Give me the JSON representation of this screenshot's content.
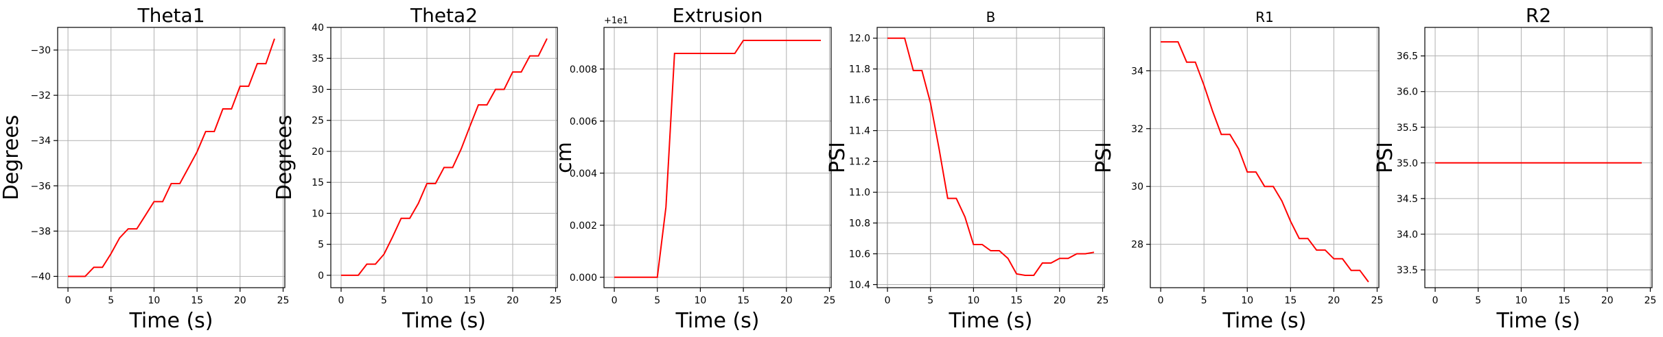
{
  "chart_data": [
    {
      "type": "line",
      "title": "Theta1",
      "xlabel": "Time (s)",
      "ylabel": "Degrees",
      "xlim": [
        -1.2,
        25.2
      ],
      "ylim": [
        -40.5,
        -29.0
      ],
      "xticks": [
        0,
        5,
        10,
        15,
        20,
        25
      ],
      "yticks": [
        -40,
        -38,
        -36,
        -34,
        -32,
        -30
      ],
      "ytick_labels": [
        "−40",
        "−38",
        "−36",
        "−34",
        "−32",
        "−30"
      ],
      "offset_text": "",
      "grid": true,
      "color": "#ff0000",
      "x": [
        0,
        1,
        2,
        3,
        4,
        5,
        6,
        7,
        8,
        9,
        10,
        11,
        12,
        13,
        14,
        15,
        16,
        17,
        18,
        19,
        20,
        21,
        22,
        23,
        24
      ],
      "y": [
        -40,
        -40,
        -40,
        -39.6,
        -39.6,
        -39.0,
        -38.3,
        -37.9,
        -37.9,
        -37.3,
        -36.7,
        -36.7,
        -35.9,
        -35.9,
        -35.2,
        -34.5,
        -33.6,
        -33.6,
        -32.6,
        -32.6,
        -31.6,
        -31.6,
        -30.6,
        -30.6,
        -29.5
      ],
      "series": [
        {
          "values": [
            -40,
            -40,
            -40,
            -39.6,
            -39.6,
            -39.0,
            -38.3,
            -37.9,
            -37.9,
            -37.3,
            -36.7,
            -36.7,
            -35.9,
            -35.9,
            -35.2,
            -34.5,
            -33.6,
            -33.6,
            -32.6,
            -32.6,
            -31.6,
            -31.6,
            -30.6,
            -30.6,
            -29.5
          ]
        }
      ]
    },
    {
      "type": "line",
      "title": "Theta2",
      "xlabel": "Time (s)",
      "ylabel": "Degrees",
      "xlim": [
        -1.2,
        25.2
      ],
      "ylim": [
        -2.0,
        40.0
      ],
      "xticks": [
        0,
        5,
        10,
        15,
        20,
        25
      ],
      "yticks": [
        0,
        5,
        10,
        15,
        20,
        25,
        30,
        35,
        40
      ],
      "ytick_labels": [
        "0",
        "5",
        "10",
        "15",
        "20",
        "25",
        "30",
        "35",
        "40"
      ],
      "offset_text": "",
      "grid": true,
      "color": "#ff0000",
      "x": [
        0,
        1,
        2,
        3,
        4,
        5,
        6,
        7,
        8,
        9,
        10,
        11,
        12,
        13,
        14,
        15,
        16,
        17,
        18,
        19,
        20,
        21,
        22,
        23,
        24
      ],
      "y": [
        0,
        0,
        0,
        1.8,
        1.8,
        3.4,
        6.2,
        9.2,
        9.2,
        11.6,
        14.8,
        14.8,
        17.4,
        17.4,
        20.4,
        24.0,
        27.5,
        27.5,
        30.0,
        30.0,
        32.8,
        32.8,
        35.4,
        35.4,
        38.2
      ],
      "series": [
        {
          "values": [
            0,
            0,
            0,
            1.8,
            1.8,
            3.4,
            6.2,
            9.2,
            9.2,
            11.6,
            14.8,
            14.8,
            17.4,
            17.4,
            20.4,
            24.0,
            27.5,
            27.5,
            30.0,
            30.0,
            32.8,
            32.8,
            35.4,
            35.4,
            38.2
          ]
        }
      ]
    },
    {
      "type": "line",
      "title": "Extrusion",
      "xlabel": "Time (s)",
      "ylabel": "cm",
      "xlim": [
        -1.2,
        25.2
      ],
      "ylim": [
        -0.0004,
        0.0096
      ],
      "xticks": [
        0,
        5,
        10,
        15,
        20,
        25
      ],
      "yticks": [
        0.0,
        0.002,
        0.004,
        0.006,
        0.008
      ],
      "ytick_labels": [
        "0.000",
        "0.002",
        "0.004",
        "0.006",
        "0.008"
      ],
      "offset_text": "+1e1",
      "grid": true,
      "color": "#ff0000",
      "x": [
        0,
        1,
        2,
        3,
        4,
        5,
        6,
        7,
        8,
        9,
        10,
        11,
        12,
        13,
        14,
        15,
        16,
        17,
        18,
        19,
        20,
        21,
        22,
        23,
        24
      ],
      "y": [
        0,
        0,
        0,
        0,
        0,
        0,
        0.0027,
        0.0086,
        0.0086,
        0.0086,
        0.0086,
        0.0086,
        0.0086,
        0.0086,
        0.0086,
        0.0091,
        0.0091,
        0.0091,
        0.0091,
        0.0091,
        0.0091,
        0.0091,
        0.0091,
        0.0091,
        0.0091
      ],
      "series": [
        {
          "values": [
            0,
            0,
            0,
            0,
            0,
            0,
            0.0027,
            0.0086,
            0.0086,
            0.0086,
            0.0086,
            0.0086,
            0.0086,
            0.0086,
            0.0086,
            0.0091,
            0.0091,
            0.0091,
            0.0091,
            0.0091,
            0.0091,
            0.0091,
            0.0091,
            0.0091,
            0.0091
          ]
        }
      ]
    },
    {
      "type": "line",
      "title": "B",
      "xlabel": "Time (s)",
      "ylabel": "PSI",
      "xlim": [
        -1.2,
        25.2
      ],
      "ylim": [
        10.38,
        12.07
      ],
      "xticks": [
        0,
        5,
        10,
        15,
        20,
        25
      ],
      "yticks": [
        10.4,
        10.6,
        10.8,
        11.0,
        11.2,
        11.4,
        11.6,
        11.8,
        12.0
      ],
      "ytick_labels": [
        "10.4",
        "10.6",
        "10.8",
        "11.0",
        "11.2",
        "11.4",
        "11.6",
        "11.8",
        "12.0"
      ],
      "offset_text": "",
      "grid": true,
      "color": "#ff0000",
      "x": [
        0,
        1,
        2,
        3,
        4,
        5,
        6,
        7,
        8,
        9,
        10,
        11,
        12,
        13,
        14,
        15,
        16,
        17,
        18,
        19,
        20,
        21,
        22,
        23,
        24
      ],
      "y": [
        12.0,
        12.0,
        12.0,
        11.79,
        11.79,
        11.58,
        11.28,
        10.96,
        10.96,
        10.84,
        10.66,
        10.66,
        10.62,
        10.62,
        10.57,
        10.47,
        10.46,
        10.46,
        10.54,
        10.54,
        10.57,
        10.57,
        10.6,
        10.6,
        10.61
      ],
      "series": [
        {
          "values": [
            12.0,
            12.0,
            12.0,
            11.79,
            11.79,
            11.58,
            11.28,
            10.96,
            10.96,
            10.84,
            10.66,
            10.66,
            10.62,
            10.62,
            10.57,
            10.47,
            10.46,
            10.46,
            10.54,
            10.54,
            10.57,
            10.57,
            10.6,
            10.6,
            10.61
          ]
        }
      ]
    },
    {
      "type": "line",
      "title": "R1",
      "xlabel": "Time (s)",
      "ylabel": "PSI",
      "xlim": [
        -1.2,
        25.2
      ],
      "ylim": [
        26.5,
        35.5
      ],
      "xticks": [
        0,
        5,
        10,
        15,
        20,
        25
      ],
      "yticks": [
        28,
        30,
        32,
        34
      ],
      "ytick_labels": [
        "28",
        "30",
        "32",
        "34"
      ],
      "offset_text": "",
      "grid": true,
      "color": "#ff0000",
      "x": [
        0,
        1,
        2,
        3,
        4,
        5,
        6,
        7,
        8,
        9,
        10,
        11,
        12,
        13,
        14,
        15,
        16,
        17,
        18,
        19,
        20,
        21,
        22,
        23,
        24
      ],
      "y": [
        35.0,
        35.0,
        35.0,
        34.3,
        34.3,
        33.5,
        32.6,
        31.8,
        31.8,
        31.3,
        30.5,
        30.5,
        30.0,
        30.0,
        29.5,
        28.8,
        28.2,
        28.2,
        27.8,
        27.8,
        27.5,
        27.5,
        27.1,
        27.1,
        26.7
      ],
      "series": [
        {
          "values": [
            35.0,
            35.0,
            35.0,
            34.3,
            34.3,
            33.5,
            32.6,
            31.8,
            31.8,
            31.3,
            30.5,
            30.5,
            30.0,
            30.0,
            29.5,
            28.8,
            28.2,
            28.2,
            27.8,
            27.8,
            27.5,
            27.5,
            27.1,
            27.1,
            26.7
          ]
        }
      ]
    },
    {
      "type": "line",
      "title": "R2",
      "xlabel": "Time (s)",
      "ylabel": "PSI",
      "xlim": [
        -1.2,
        25.2
      ],
      "ylim": [
        33.25,
        36.9
      ],
      "xticks": [
        0,
        5,
        10,
        15,
        20,
        25
      ],
      "yticks": [
        33.5,
        34.0,
        34.5,
        35.0,
        35.5,
        36.0,
        36.5
      ],
      "ytick_labels": [
        "33.5",
        "34.0",
        "34.5",
        "35.0",
        "35.5",
        "36.0",
        "36.5"
      ],
      "offset_text": "",
      "grid": true,
      "color": "#ff0000",
      "x": [
        0,
        1,
        2,
        3,
        4,
        5,
        6,
        7,
        8,
        9,
        10,
        11,
        12,
        13,
        14,
        15,
        16,
        17,
        18,
        19,
        20,
        21,
        22,
        23,
        24
      ],
      "y": [
        35,
        35,
        35,
        35,
        35,
        35,
        35,
        35,
        35,
        35,
        35,
        35,
        35,
        35,
        35,
        35,
        35,
        35,
        35,
        35,
        35,
        35,
        35,
        35,
        35
      ],
      "series": [
        {
          "values": [
            35,
            35,
            35,
            35,
            35,
            35,
            35,
            35,
            35,
            35,
            35,
            35,
            35,
            35,
            35,
            35,
            35,
            35,
            35,
            35,
            35,
            35,
            35,
            35,
            35
          ]
        }
      ]
    }
  ]
}
